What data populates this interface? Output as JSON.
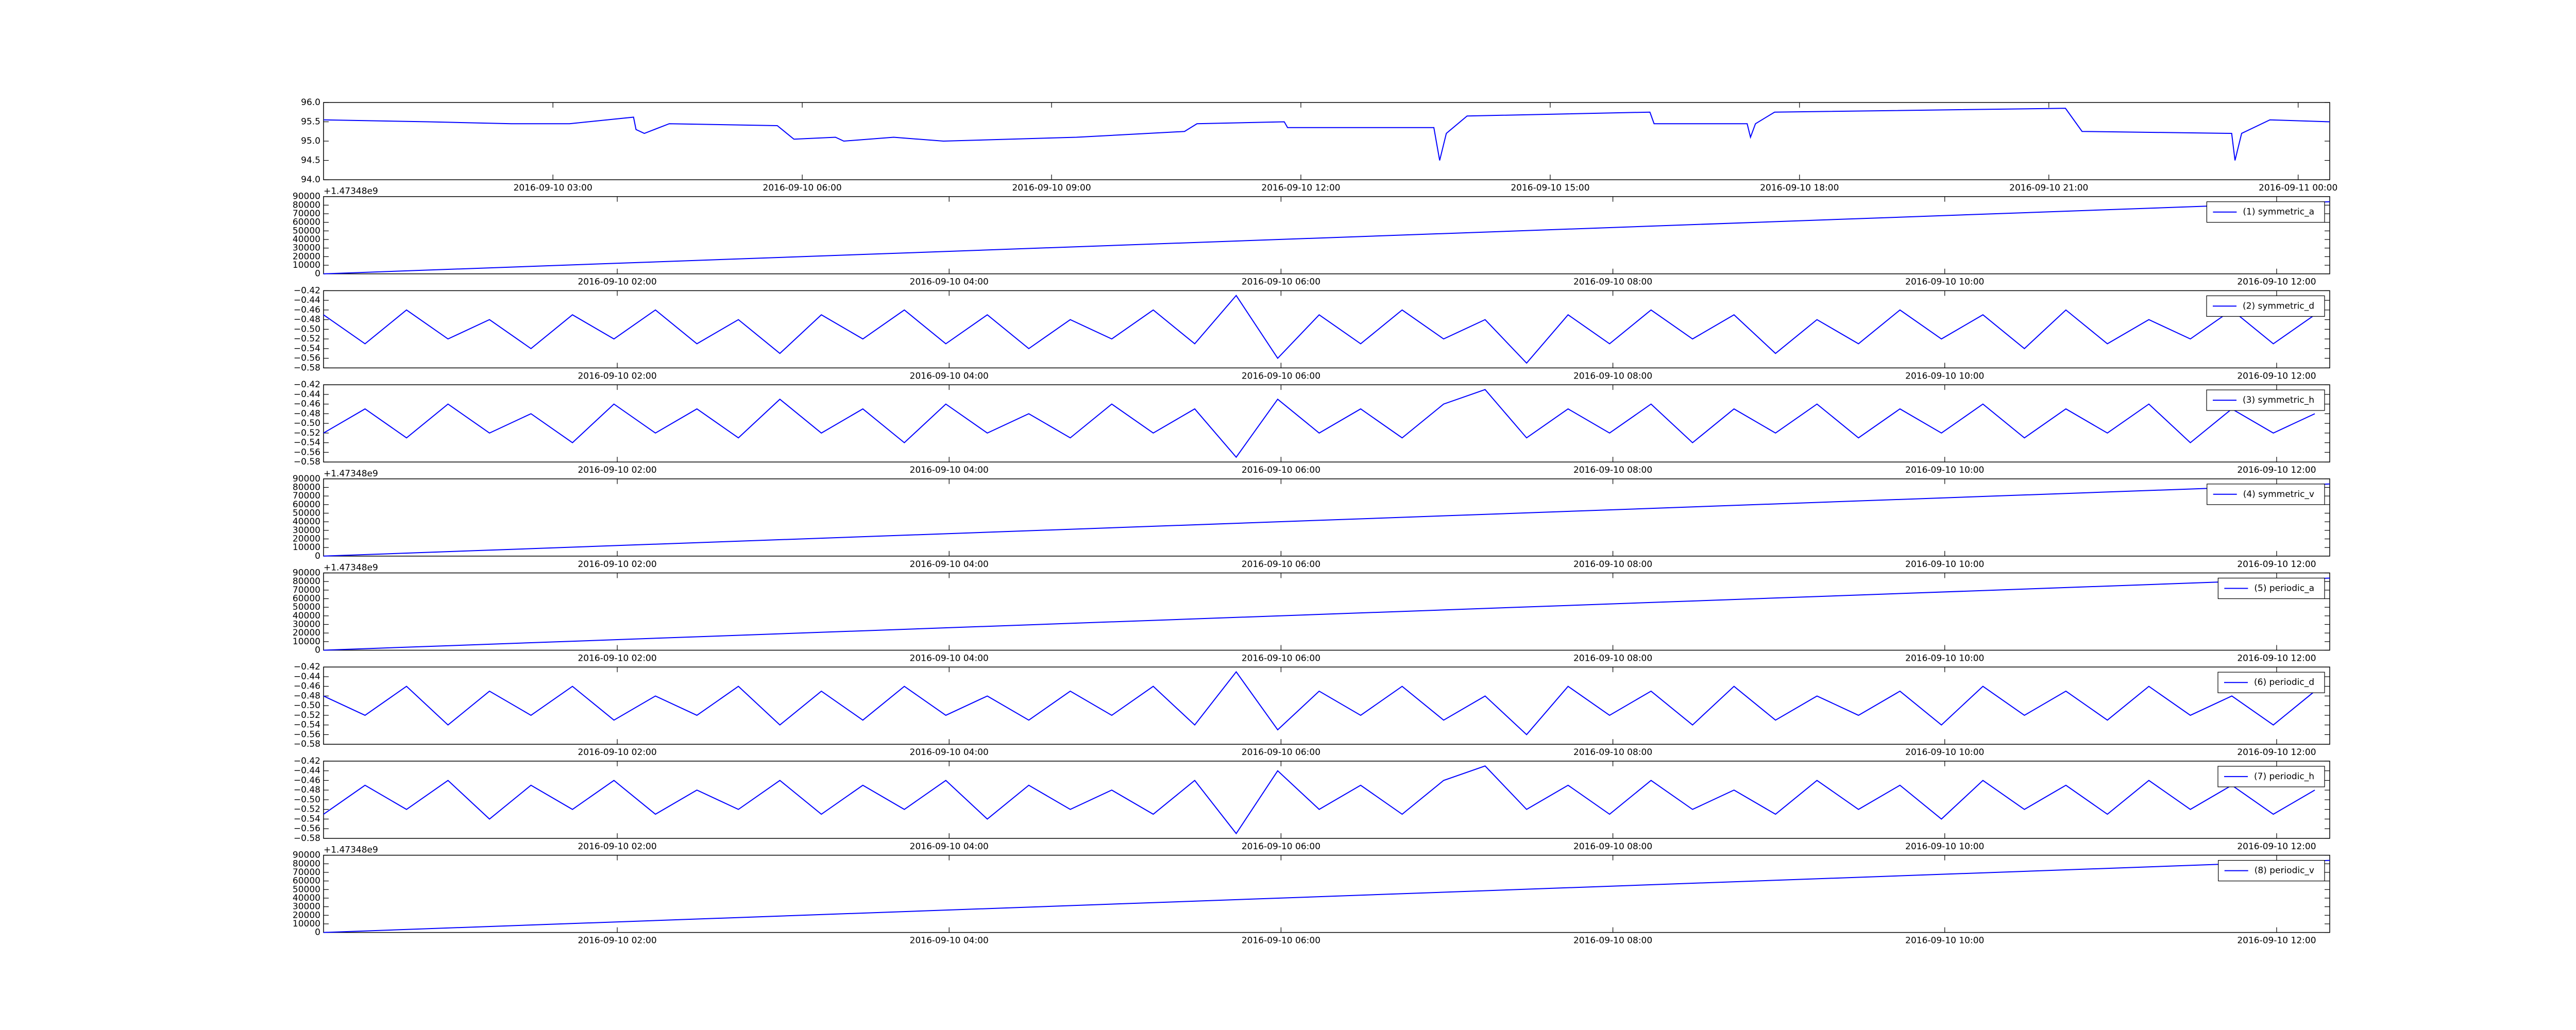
{
  "chart_data": [
    {
      "type": "line",
      "xlim": [
        0.24,
        24.38
      ],
      "ylim": [
        94.0,
        96.0
      ],
      "yticks": [
        {
          "value": 94.0,
          "label": "94.0"
        },
        {
          "value": 94.5,
          "label": "94.5"
        },
        {
          "value": 95.0,
          "label": "95.0"
        },
        {
          "value": 95.5,
          "label": "95.5"
        },
        {
          "value": 96.0,
          "label": "96.0"
        }
      ],
      "xticks": [
        {
          "value": 3,
          "label": "2016-09-10 03:00"
        },
        {
          "value": 6,
          "label": "2016-09-10 06:00"
        },
        {
          "value": 9,
          "label": "2016-09-10 09:00"
        },
        {
          "value": 12,
          "label": "2016-09-10 12:00"
        },
        {
          "value": 15,
          "label": "2016-09-10 15:00"
        },
        {
          "value": 18,
          "label": "2016-09-10 18:00"
        },
        {
          "value": 21,
          "label": "2016-09-10 21:00"
        },
        {
          "value": 24,
          "label": "2016-09-11 00:00"
        }
      ],
      "x": [
        0.24,
        1.5,
        2.5,
        3.2,
        3.97,
        4.0,
        4.1,
        4.4,
        5.7,
        5.9,
        6.4,
        6.5,
        7.1,
        7.7,
        9.3,
        10.6,
        10.75,
        11.8,
        11.84,
        13.6,
        13.67,
        13.75,
        14.0,
        16.2,
        16.25,
        17.37,
        17.41,
        17.47,
        17.7,
        21.2,
        21.4,
        23.2,
        23.24,
        23.32,
        23.66,
        24.38
      ],
      "series": [
        {
          "color": "#0000ff",
          "values": [
            95.55,
            95.5,
            95.45,
            95.45,
            95.62,
            95.3,
            95.2,
            95.45,
            95.4,
            95.05,
            95.1,
            95.0,
            95.1,
            95.0,
            95.1,
            95.25,
            95.45,
            95.5,
            95.35,
            95.35,
            94.5,
            95.2,
            95.65,
            95.75,
            95.45,
            95.45,
            95.1,
            95.45,
            95.75,
            95.85,
            95.25,
            95.2,
            94.5,
            95.2,
            95.55,
            95.5
          ]
        }
      ]
    },
    {
      "type": "line",
      "y_offset": "+1.47348e9",
      "xlim": [
        0.23,
        12.32
      ],
      "ylim": [
        0,
        90000
      ],
      "yticks": [
        0,
        10000,
        20000,
        30000,
        40000,
        50000,
        60000,
        70000,
        80000,
        90000
      ],
      "xticks": [
        {
          "value": 2,
          "label": "2016-09-10 02:00"
        },
        {
          "value": 4,
          "label": "2016-09-10 04:00"
        },
        {
          "value": 6,
          "label": "2016-09-10 06:00"
        },
        {
          "value": 8,
          "label": "2016-09-10 08:00"
        },
        {
          "value": 10,
          "label": "2016-09-10 10:00"
        },
        {
          "value": 12,
          "label": "2016-09-10 12:00"
        }
      ],
      "x": [
        0.23,
        12.32
      ],
      "series": [
        {
          "name": "(1) symmetric_a",
          "color": "#0000ff",
          "values": [
            0,
            84000
          ]
        }
      ]
    },
    {
      "type": "line",
      "xlim": [
        0.23,
        12.32
      ],
      "ylim": [
        -0.58,
        -0.42
      ],
      "yticks": [
        {
          "value": -0.58,
          "label": "−0.58"
        },
        {
          "value": -0.56,
          "label": "−0.56"
        },
        {
          "value": -0.54,
          "label": "−0.54"
        },
        {
          "value": -0.52,
          "label": "−0.52"
        },
        {
          "value": -0.5,
          "label": "−0.50"
        },
        {
          "value": -0.48,
          "label": "−0.48"
        },
        {
          "value": -0.46,
          "label": "−0.46"
        },
        {
          "value": -0.44,
          "label": "−0.44"
        },
        {
          "value": -0.42,
          "label": "−0.42"
        }
      ],
      "xticks": [
        {
          "value": 2,
          "label": "2016-09-10 02:00"
        },
        {
          "value": 4,
          "label": "2016-09-10 04:00"
        },
        {
          "value": 6,
          "label": "2016-09-10 06:00"
        },
        {
          "value": 8,
          "label": "2016-09-10 08:00"
        },
        {
          "value": 10,
          "label": "2016-09-10 10:00"
        },
        {
          "value": 12,
          "label": "2016-09-10 12:00"
        }
      ],
      "x": [
        0.23,
        0.48,
        0.73,
        0.98,
        1.23,
        1.48,
        1.73,
        1.98,
        2.23,
        2.48,
        2.73,
        2.98,
        3.23,
        3.48,
        3.73,
        3.98,
        4.23,
        4.48,
        4.73,
        4.98,
        5.23,
        5.48,
        5.73,
        5.98,
        6.23,
        6.48,
        6.73,
        6.98,
        7.23,
        7.48,
        7.73,
        7.98,
        8.23,
        8.48,
        8.73,
        8.98,
        9.23,
        9.48,
        9.73,
        9.98,
        10.23,
        10.48,
        10.73,
        10.98,
        11.23,
        11.48,
        11.73,
        11.98,
        12.23
      ],
      "series": [
        {
          "name": "(2) symmetric_d",
          "color": "#0000ff",
          "values": [
            -0.47,
            -0.53,
            -0.46,
            -0.52,
            -0.48,
            -0.54,
            -0.47,
            -0.52,
            -0.46,
            -0.53,
            -0.48,
            -0.55,
            -0.47,
            -0.52,
            -0.46,
            -0.53,
            -0.47,
            -0.54,
            -0.48,
            -0.52,
            -0.46,
            -0.53,
            -0.43,
            -0.56,
            -0.47,
            -0.53,
            -0.46,
            -0.52,
            -0.48,
            -0.57,
            -0.47,
            -0.53,
            -0.46,
            -0.52,
            -0.47,
            -0.55,
            -0.48,
            -0.53,
            -0.46,
            -0.52,
            -0.47,
            -0.54,
            -0.46,
            -0.53,
            -0.48,
            -0.52,
            -0.46,
            -0.53,
            -0.47
          ]
        }
      ]
    },
    {
      "type": "line",
      "xlim": [
        0.23,
        12.32
      ],
      "ylim": [
        -0.58,
        -0.42
      ],
      "yticks": [
        {
          "value": -0.58,
          "label": "−0.58"
        },
        {
          "value": -0.56,
          "label": "−0.56"
        },
        {
          "value": -0.54,
          "label": "−0.54"
        },
        {
          "value": -0.52,
          "label": "−0.52"
        },
        {
          "value": -0.5,
          "label": "−0.50"
        },
        {
          "value": -0.48,
          "label": "−0.48"
        },
        {
          "value": -0.46,
          "label": "−0.46"
        },
        {
          "value": -0.44,
          "label": "−0.44"
        },
        {
          "value": -0.42,
          "label": "−0.42"
        }
      ],
      "xticks": [
        {
          "value": 2,
          "label": "2016-09-10 02:00"
        },
        {
          "value": 4,
          "label": "2016-09-10 04:00"
        },
        {
          "value": 6,
          "label": "2016-09-10 06:00"
        },
        {
          "value": 8,
          "label": "2016-09-10 08:00"
        },
        {
          "value": 10,
          "label": "2016-09-10 10:00"
        },
        {
          "value": 12,
          "label": "2016-09-10 12:00"
        }
      ],
      "x": [
        0.23,
        0.48,
        0.73,
        0.98,
        1.23,
        1.48,
        1.73,
        1.98,
        2.23,
        2.48,
        2.73,
        2.98,
        3.23,
        3.48,
        3.73,
        3.98,
        4.23,
        4.48,
        4.73,
        4.98,
        5.23,
        5.48,
        5.73,
        5.98,
        6.23,
        6.48,
        6.73,
        6.98,
        7.23,
        7.48,
        7.73,
        7.98,
        8.23,
        8.48,
        8.73,
        8.98,
        9.23,
        9.48,
        9.73,
        9.98,
        10.23,
        10.48,
        10.73,
        10.98,
        11.23,
        11.48,
        11.73,
        11.98,
        12.23
      ],
      "series": [
        {
          "name": "(3) symmetric_h",
          "color": "#0000ff",
          "values": [
            -0.52,
            -0.47,
            -0.53,
            -0.46,
            -0.52,
            -0.48,
            -0.54,
            -0.46,
            -0.52,
            -0.47,
            -0.53,
            -0.45,
            -0.52,
            -0.47,
            -0.54,
            -0.46,
            -0.52,
            -0.48,
            -0.53,
            -0.46,
            -0.52,
            -0.47,
            -0.57,
            -0.45,
            -0.52,
            -0.47,
            -0.53,
            -0.46,
            -0.43,
            -0.53,
            -0.47,
            -0.52,
            -0.46,
            -0.54,
            -0.47,
            -0.52,
            -0.46,
            -0.53,
            -0.47,
            -0.52,
            -0.46,
            -0.53,
            -0.47,
            -0.52,
            -0.46,
            -0.54,
            -0.47,
            -0.52,
            -0.48
          ]
        }
      ]
    },
    {
      "type": "line",
      "y_offset": "+1.47348e9",
      "xlim": [
        0.23,
        12.32
      ],
      "ylim": [
        0,
        90000
      ],
      "yticks": [
        0,
        10000,
        20000,
        30000,
        40000,
        50000,
        60000,
        70000,
        80000,
        90000
      ],
      "xticks": [
        {
          "value": 2,
          "label": "2016-09-10 02:00"
        },
        {
          "value": 4,
          "label": "2016-09-10 04:00"
        },
        {
          "value": 6,
          "label": "2016-09-10 06:00"
        },
        {
          "value": 8,
          "label": "2016-09-10 08:00"
        },
        {
          "value": 10,
          "label": "2016-09-10 10:00"
        },
        {
          "value": 12,
          "label": "2016-09-10 12:00"
        }
      ],
      "x": [
        0.23,
        12.32
      ],
      "series": [
        {
          "name": "(4) symmetric_v",
          "color": "#0000ff",
          "values": [
            0,
            84000
          ]
        }
      ]
    },
    {
      "type": "line",
      "y_offset": "+1.47348e9",
      "xlim": [
        0.23,
        12.32
      ],
      "ylim": [
        0,
        90000
      ],
      "yticks": [
        0,
        10000,
        20000,
        30000,
        40000,
        50000,
        60000,
        70000,
        80000,
        90000
      ],
      "xticks": [
        {
          "value": 2,
          "label": "2016-09-10 02:00"
        },
        {
          "value": 4,
          "label": "2016-09-10 04:00"
        },
        {
          "value": 6,
          "label": "2016-09-10 06:00"
        },
        {
          "value": 8,
          "label": "2016-09-10 08:00"
        },
        {
          "value": 10,
          "label": "2016-09-10 10:00"
        },
        {
          "value": 12,
          "label": "2016-09-10 12:00"
        }
      ],
      "x": [
        0.23,
        12.32
      ],
      "series": [
        {
          "name": "(5) periodic_a",
          "color": "#0000ff",
          "values": [
            0,
            84000
          ]
        }
      ]
    },
    {
      "type": "line",
      "xlim": [
        0.23,
        12.32
      ],
      "ylim": [
        -0.58,
        -0.42
      ],
      "yticks": [
        {
          "value": -0.58,
          "label": "−0.58"
        },
        {
          "value": -0.56,
          "label": "−0.56"
        },
        {
          "value": -0.54,
          "label": "−0.54"
        },
        {
          "value": -0.52,
          "label": "−0.52"
        },
        {
          "value": -0.5,
          "label": "−0.50"
        },
        {
          "value": -0.48,
          "label": "−0.48"
        },
        {
          "value": -0.46,
          "label": "−0.46"
        },
        {
          "value": -0.44,
          "label": "−0.44"
        },
        {
          "value": -0.42,
          "label": "−0.42"
        }
      ],
      "xticks": [
        {
          "value": 2,
          "label": "2016-09-10 02:00"
        },
        {
          "value": 4,
          "label": "2016-09-10 04:00"
        },
        {
          "value": 6,
          "label": "2016-09-10 06:00"
        },
        {
          "value": 8,
          "label": "2016-09-10 08:00"
        },
        {
          "value": 10,
          "label": "2016-09-10 10:00"
        },
        {
          "value": 12,
          "label": "2016-09-10 12:00"
        }
      ],
      "x": [
        0.23,
        0.48,
        0.73,
        0.98,
        1.23,
        1.48,
        1.73,
        1.98,
        2.23,
        2.48,
        2.73,
        2.98,
        3.23,
        3.48,
        3.73,
        3.98,
        4.23,
        4.48,
        4.73,
        4.98,
        5.23,
        5.48,
        5.73,
        5.98,
        6.23,
        6.48,
        6.73,
        6.98,
        7.23,
        7.48,
        7.73,
        7.98,
        8.23,
        8.48,
        8.73,
        8.98,
        9.23,
        9.48,
        9.73,
        9.98,
        10.23,
        10.48,
        10.73,
        10.98,
        11.23,
        11.48,
        11.73,
        11.98,
        12.23
      ],
      "series": [
        {
          "name": "(6) periodic_d",
          "color": "#0000ff",
          "values": [
            -0.48,
            -0.52,
            -0.46,
            -0.54,
            -0.47,
            -0.52,
            -0.46,
            -0.53,
            -0.48,
            -0.52,
            -0.46,
            -0.54,
            -0.47,
            -0.53,
            -0.46,
            -0.52,
            -0.48,
            -0.53,
            -0.47,
            -0.52,
            -0.46,
            -0.54,
            -0.43,
            -0.55,
            -0.47,
            -0.52,
            -0.46,
            -0.53,
            -0.48,
            -0.56,
            -0.46,
            -0.52,
            -0.47,
            -0.54,
            -0.46,
            -0.53,
            -0.48,
            -0.52,
            -0.47,
            -0.54,
            -0.46,
            -0.52,
            -0.47,
            -0.53,
            -0.46,
            -0.52,
            -0.48,
            -0.54,
            -0.47
          ]
        }
      ]
    },
    {
      "type": "line",
      "xlim": [
        0.23,
        12.32
      ],
      "ylim": [
        -0.58,
        -0.42
      ],
      "yticks": [
        {
          "value": -0.58,
          "label": "−0.58"
        },
        {
          "value": -0.56,
          "label": "−0.56"
        },
        {
          "value": -0.54,
          "label": "−0.54"
        },
        {
          "value": -0.52,
          "label": "−0.52"
        },
        {
          "value": -0.5,
          "label": "−0.50"
        },
        {
          "value": -0.48,
          "label": "−0.48"
        },
        {
          "value": -0.46,
          "label": "−0.46"
        },
        {
          "value": -0.44,
          "label": "−0.44"
        },
        {
          "value": -0.42,
          "label": "−0.42"
        }
      ],
      "xticks": [
        {
          "value": 2,
          "label": "2016-09-10 02:00"
        },
        {
          "value": 4,
          "label": "2016-09-10 04:00"
        },
        {
          "value": 6,
          "label": "2016-09-10 06:00"
        },
        {
          "value": 8,
          "label": "2016-09-10 08:00"
        },
        {
          "value": 10,
          "label": "2016-09-10 10:00"
        },
        {
          "value": 12,
          "label": "2016-09-10 12:00"
        }
      ],
      "x": [
        0.23,
        0.48,
        0.73,
        0.98,
        1.23,
        1.48,
        1.73,
        1.98,
        2.23,
        2.48,
        2.73,
        2.98,
        3.23,
        3.48,
        3.73,
        3.98,
        4.23,
        4.48,
        4.73,
        4.98,
        5.23,
        5.48,
        5.73,
        5.98,
        6.23,
        6.48,
        6.73,
        6.98,
        7.23,
        7.48,
        7.73,
        7.98,
        8.23,
        8.48,
        8.73,
        8.98,
        9.23,
        9.48,
        9.73,
        9.98,
        10.23,
        10.48,
        10.73,
        10.98,
        11.23,
        11.48,
        11.73,
        11.98,
        12.23
      ],
      "series": [
        {
          "name": "(7) periodic_h",
          "color": "#0000ff",
          "values": [
            -0.53,
            -0.47,
            -0.52,
            -0.46,
            -0.54,
            -0.47,
            -0.52,
            -0.46,
            -0.53,
            -0.48,
            -0.52,
            -0.46,
            -0.53,
            -0.47,
            -0.52,
            -0.46,
            -0.54,
            -0.47,
            -0.52,
            -0.48,
            -0.53,
            -0.46,
            -0.57,
            -0.44,
            -0.52,
            -0.47,
            -0.53,
            -0.46,
            -0.43,
            -0.52,
            -0.47,
            -0.53,
            -0.46,
            -0.52,
            -0.48,
            -0.53,
            -0.46,
            -0.52,
            -0.47,
            -0.54,
            -0.46,
            -0.52,
            -0.47,
            -0.53,
            -0.46,
            -0.52,
            -0.47,
            -0.53,
            -0.48
          ]
        }
      ]
    },
    {
      "type": "line",
      "y_offset": "+1.47348e9",
      "xlim": [
        0.23,
        12.32
      ],
      "ylim": [
        0,
        90000
      ],
      "yticks": [
        0,
        10000,
        20000,
        30000,
        40000,
        50000,
        60000,
        70000,
        80000,
        90000
      ],
      "xticks": [
        {
          "value": 2,
          "label": "2016-09-10 02:00"
        },
        {
          "value": 4,
          "label": "2016-09-10 04:00"
        },
        {
          "value": 6,
          "label": "2016-09-10 06:00"
        },
        {
          "value": 8,
          "label": "2016-09-10 08:00"
        },
        {
          "value": 10,
          "label": "2016-09-10 10:00"
        },
        {
          "value": 12,
          "label": "2016-09-10 12:00"
        }
      ],
      "x": [
        0.23,
        12.32
      ],
      "series": [
        {
          "name": "(8) periodic_v",
          "color": "#0000ff",
          "values": [
            0,
            84000
          ]
        }
      ]
    }
  ]
}
